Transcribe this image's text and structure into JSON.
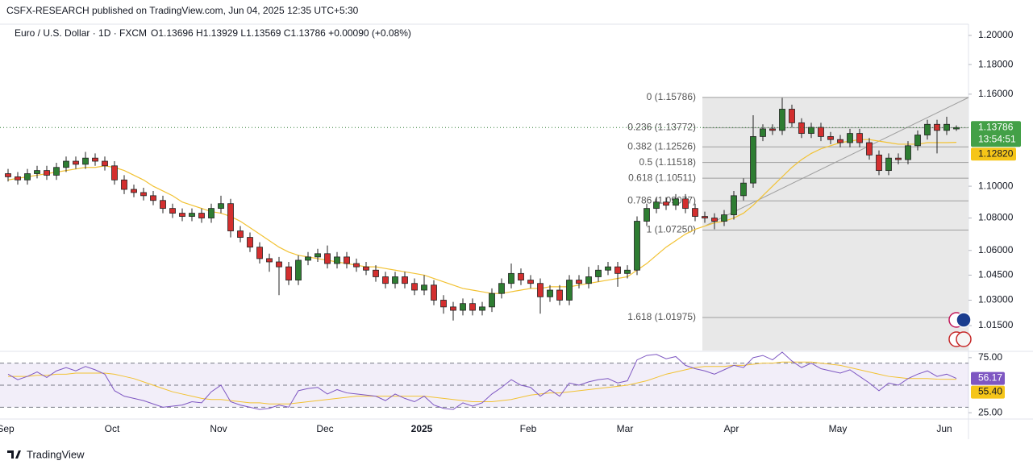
{
  "chart_data": {
    "type": "candlestick",
    "header": {
      "published": "CSFX-RESEARCH published on TradingView.com, Jun 04, 2025 12:35 UTC+5:30",
      "symbol": "Euro / U.S. Dollar · 1D · FXCM",
      "ohlc": "O1.13696  H1.13929  L1.13569  C1.13786  +0.00090 (+0.08%)"
    },
    "brand": "TradingView",
    "categories": [
      "Sep",
      null,
      null,
      null,
      null,
      null,
      null,
      null,
      null,
      null,
      null,
      "Oct",
      null,
      null,
      null,
      null,
      null,
      null,
      null,
      null,
      null,
      null,
      "Nov",
      null,
      null,
      null,
      null,
      null,
      null,
      null,
      null,
      null,
      null,
      "Dec",
      null,
      null,
      null,
      null,
      null,
      null,
      null,
      null,
      null,
      "2025",
      null,
      null,
      null,
      null,
      null,
      null,
      null,
      null,
      null,
      null,
      "Feb",
      null,
      null,
      null,
      null,
      null,
      null,
      null,
      null,
      null,
      "Mar",
      null,
      null,
      null,
      null,
      null,
      null,
      null,
      null,
      null,
      null,
      "Apr",
      null,
      null,
      null,
      null,
      null,
      null,
      null,
      null,
      null,
      null,
      "May",
      null,
      null,
      null,
      null,
      null,
      null,
      null,
      null,
      null,
      null,
      "Jun",
      null
    ],
    "open": [
      1.108,
      1.106,
      1.104,
      1.108,
      1.11,
      1.107,
      1.112,
      1.116,
      1.114,
      1.118,
      1.116,
      1.113,
      1.104,
      1.098,
      1.096,
      1.094,
      1.091,
      1.086,
      1.083,
      1.081,
      1.083,
      1.08,
      1.086,
      1.089,
      1.072,
      1.068,
      1.062,
      1.055,
      1.053,
      1.05,
      1.042,
      1.054,
      1.056,
      1.058,
      1.052,
      1.056,
      1.052,
      1.05,
      1.048,
      1.044,
      1.04,
      1.044,
      1.04,
      1.036,
      1.039,
      1.03,
      1.026,
      1.024,
      1.028,
      1.024,
      1.026,
      1.034,
      1.04,
      1.046,
      1.042,
      1.04,
      1.032,
      1.036,
      1.03,
      1.042,
      1.04,
      1.044,
      1.048,
      1.05,
      1.046,
      1.048,
      1.078,
      1.086,
      1.09,
      1.088,
      1.092,
      1.086,
      1.081,
      1.08,
      1.078,
      1.082,
      1.094,
      1.102,
      1.132,
      1.137,
      1.136,
      1.15,
      1.141,
      1.134,
      1.138,
      1.132,
      1.13,
      1.128,
      1.134,
      1.128,
      1.12,
      1.11,
      1.118,
      1.117,
      1.126,
      1.133,
      1.14,
      1.136,
      1.13696
    ],
    "high": [
      1.111,
      1.109,
      1.111,
      1.113,
      1.113,
      1.115,
      1.119,
      1.119,
      1.122,
      1.121,
      1.119,
      1.116,
      1.107,
      1.101,
      1.099,
      1.097,
      1.094,
      1.089,
      1.086,
      1.086,
      1.086,
      1.089,
      1.094,
      1.092,
      1.075,
      1.071,
      1.065,
      1.058,
      1.056,
      1.053,
      1.057,
      1.059,
      1.061,
      1.063,
      1.059,
      1.059,
      1.055,
      1.053,
      1.051,
      1.047,
      1.047,
      1.047,
      1.043,
      1.045,
      1.042,
      1.033,
      1.029,
      1.031,
      1.031,
      1.029,
      1.037,
      1.043,
      1.052,
      1.049,
      1.045,
      1.043,
      1.039,
      1.039,
      1.045,
      1.045,
      1.05,
      1.051,
      1.053,
      1.053,
      1.051,
      1.081,
      1.089,
      1.093,
      1.093,
      1.095,
      1.095,
      1.089,
      1.084,
      1.083,
      1.085,
      1.097,
      1.105,
      1.146,
      1.14,
      1.14,
      1.1575,
      1.153,
      1.144,
      1.141,
      1.141,
      1.135,
      1.133,
      1.137,
      1.137,
      1.131,
      1.123,
      1.121,
      1.121,
      1.129,
      1.136,
      1.143,
      1.143,
      1.145,
      1.13929
    ],
    "low": [
      1.103,
      1.101,
      1.101,
      1.105,
      1.104,
      1.104,
      1.109,
      1.111,
      1.111,
      1.113,
      1.11,
      1.101,
      1.095,
      1.093,
      1.091,
      1.088,
      1.083,
      1.08,
      1.078,
      1.078,
      1.077,
      1.077,
      1.083,
      1.068,
      1.065,
      1.059,
      1.052,
      1.047,
      1.033,
      1.039,
      1.039,
      1.051,
      1.053,
      1.049,
      1.049,
      1.049,
      1.047,
      1.045,
      1.041,
      1.037,
      1.037,
      1.037,
      1.033,
      1.033,
      1.027,
      1.022,
      1.018,
      1.021,
      1.021,
      1.021,
      1.023,
      1.031,
      1.037,
      1.039,
      1.037,
      1.022,
      1.029,
      1.027,
      1.027,
      1.037,
      1.037,
      1.041,
      1.045,
      1.038,
      1.043,
      1.045,
      1.075,
      1.083,
      1.085,
      1.085,
      1.083,
      1.078,
      1.077,
      1.073,
      1.075,
      1.079,
      1.091,
      1.099,
      1.129,
      1.133,
      1.133,
      1.138,
      1.131,
      1.131,
      1.129,
      1.127,
      1.125,
      1.125,
      1.125,
      1.117,
      1.107,
      1.107,
      1.114,
      1.114,
      1.123,
      1.13,
      1.121,
      1.133,
      1.13569
    ],
    "close": [
      1.106,
      1.104,
      1.108,
      1.11,
      1.107,
      1.112,
      1.116,
      1.114,
      1.118,
      1.116,
      1.113,
      1.104,
      1.098,
      1.096,
      1.094,
      1.091,
      1.086,
      1.083,
      1.081,
      1.083,
      1.08,
      1.086,
      1.089,
      1.072,
      1.068,
      1.062,
      1.055,
      1.053,
      1.05,
      1.042,
      1.054,
      1.056,
      1.058,
      1.052,
      1.056,
      1.052,
      1.05,
      1.048,
      1.044,
      1.04,
      1.044,
      1.04,
      1.036,
      1.039,
      1.03,
      1.026,
      1.024,
      1.028,
      1.024,
      1.026,
      1.034,
      1.04,
      1.046,
      1.042,
      1.04,
      1.032,
      1.036,
      1.03,
      1.042,
      1.04,
      1.044,
      1.048,
      1.05,
      1.046,
      1.048,
      1.078,
      1.086,
      1.09,
      1.088,
      1.092,
      1.086,
      1.081,
      1.08,
      1.078,
      1.082,
      1.094,
      1.102,
      1.132,
      1.137,
      1.136,
      1.15,
      1.141,
      1.134,
      1.138,
      1.132,
      1.13,
      1.128,
      1.134,
      1.128,
      1.12,
      1.11,
      1.118,
      1.117,
      1.126,
      1.133,
      1.14,
      1.136,
      1.14,
      1.13786
    ],
    "up_color": "#2e7d32",
    "down_color": "#d32f2f",
    "ma": {
      "color": "#f2c233",
      "values": [
        1.104,
        1.105,
        1.106,
        1.107,
        1.108,
        1.109,
        1.11,
        1.111,
        1.112,
        1.112,
        1.113,
        1.112,
        1.11,
        1.107,
        1.104,
        1.1,
        1.097,
        1.094,
        1.09,
        1.088,
        1.086,
        1.084,
        1.083,
        1.081,
        1.078,
        1.074,
        1.07,
        1.066,
        1.062,
        1.059,
        1.057,
        1.056,
        1.055,
        1.054,
        1.053,
        1.052,
        1.051,
        1.05,
        1.05,
        1.049,
        1.048,
        1.047,
        1.046,
        1.045,
        1.043,
        1.041,
        1.039,
        1.037,
        1.036,
        1.035,
        1.034,
        1.034,
        1.035,
        1.036,
        1.037,
        1.037,
        1.038,
        1.038,
        1.038,
        1.039,
        1.04,
        1.041,
        1.042,
        1.043,
        1.044,
        1.048,
        1.052,
        1.057,
        1.062,
        1.066,
        1.07,
        1.073,
        1.075,
        1.077,
        1.078,
        1.08,
        1.083,
        1.088,
        1.094,
        1.1,
        1.106,
        1.112,
        1.117,
        1.121,
        1.124,
        1.126,
        1.128,
        1.129,
        1.13,
        1.13,
        1.129,
        1.128,
        1.127,
        1.127,
        1.127,
        1.128,
        1.128,
        1.128,
        1.1282
      ]
    },
    "ma_label": {
      "value": 1.1282,
      "label": "1.12820"
    },
    "countdown": "13:54:51",
    "log_scale": true,
    "ylim": [
      1.0005,
      1.2078
    ],
    "yticks": [
      {
        "value": 1.2,
        "label": "1.20000"
      },
      {
        "value": 1.18,
        "label": "1.18000"
      },
      {
        "value": 1.16,
        "label": "1.16000"
      },
      {
        "value": 1.1,
        "label": "1.10000"
      },
      {
        "value": 1.08,
        "label": "1.08000"
      },
      {
        "value": 1.06,
        "label": "1.06000"
      },
      {
        "value": 1.045,
        "label": "1.04500"
      },
      {
        "value": 1.03,
        "label": "1.03000"
      },
      {
        "value": 1.015,
        "label": "1.01500"
      }
    ],
    "fib": {
      "color": "#9e9e9e",
      "levels": [
        {
          "value": 1.15786,
          "label": "0 (1.15786)"
        },
        {
          "value": 1.13772,
          "label": "0.236 (1.13772)"
        },
        {
          "value": 1.12526,
          "label": "0.382 (1.12526)"
        },
        {
          "value": 1.11518,
          "label": "0.5 (1.11518)"
        },
        {
          "value": 1.10511,
          "label": "0.618 (1.10511)"
        },
        {
          "value": 1.09077,
          "label": "0.786 (1.09077)"
        },
        {
          "value": 1.0725,
          "label": "1 (1.07250)"
        },
        {
          "value": 1.01975,
          "label": "1.618 (1.01975)"
        }
      ]
    },
    "rsi": {
      "color": "#7e57c2",
      "values": [
        60,
        55,
        58,
        62,
        57,
        63,
        66,
        63,
        67,
        64,
        60,
        45,
        40,
        38,
        36,
        33,
        30,
        31,
        32,
        35,
        34,
        44,
        50,
        35,
        32,
        30,
        28,
        29,
        32,
        30,
        45,
        47,
        48,
        42,
        46,
        43,
        42,
        41,
        40,
        36,
        42,
        38,
        35,
        40,
        32,
        29,
        28,
        34,
        31,
        34,
        42,
        48,
        55,
        50,
        48,
        40,
        46,
        40,
        52,
        50,
        53,
        55,
        56,
        52,
        54,
        73,
        77,
        78,
        74,
        76,
        68,
        65,
        63,
        60,
        64,
        68,
        66,
        75,
        77,
        73,
        80,
        72,
        66,
        70,
        65,
        63,
        61,
        64,
        58,
        52,
        45,
        52,
        50,
        56,
        60,
        63,
        58,
        60,
        56.17
      ]
    },
    "rsi_ma": {
      "color": "#f2c233",
      "values": [
        58,
        58,
        58,
        59,
        59,
        60,
        60,
        61,
        61,
        61,
        61,
        60,
        58,
        56,
        53,
        50,
        47,
        44,
        42,
        40,
        38,
        37,
        37,
        36,
        35,
        34,
        34,
        33,
        33,
        33,
        34,
        35,
        36,
        37,
        38,
        39,
        40,
        40,
        40,
        40,
        40,
        40,
        40,
        40,
        39,
        38,
        37,
        36,
        35,
        35,
        35,
        36,
        37,
        39,
        41,
        42,
        43,
        43,
        44,
        45,
        46,
        47,
        48,
        49,
        50,
        52,
        54,
        57,
        60,
        62,
        64,
        66,
        67,
        67,
        67,
        68,
        68,
        69,
        70,
        70,
        71,
        71,
        71,
        71,
        70,
        69,
        68,
        66,
        64,
        62,
        60,
        58,
        57,
        56,
        56,
        56,
        55.5,
        55.4,
        55.4
      ]
    },
    "rsi_ma_label": {
      "value": 55.4,
      "label": "55.40"
    },
    "rsi_ylim": [
      20,
      80
    ],
    "rsi_yticks": [
      {
        "value": 75,
        "label": "75.00"
      },
      {
        "value": 25,
        "label": "25.00"
      }
    ],
    "rsi_levels": [
      70,
      50,
      30
    ]
  }
}
